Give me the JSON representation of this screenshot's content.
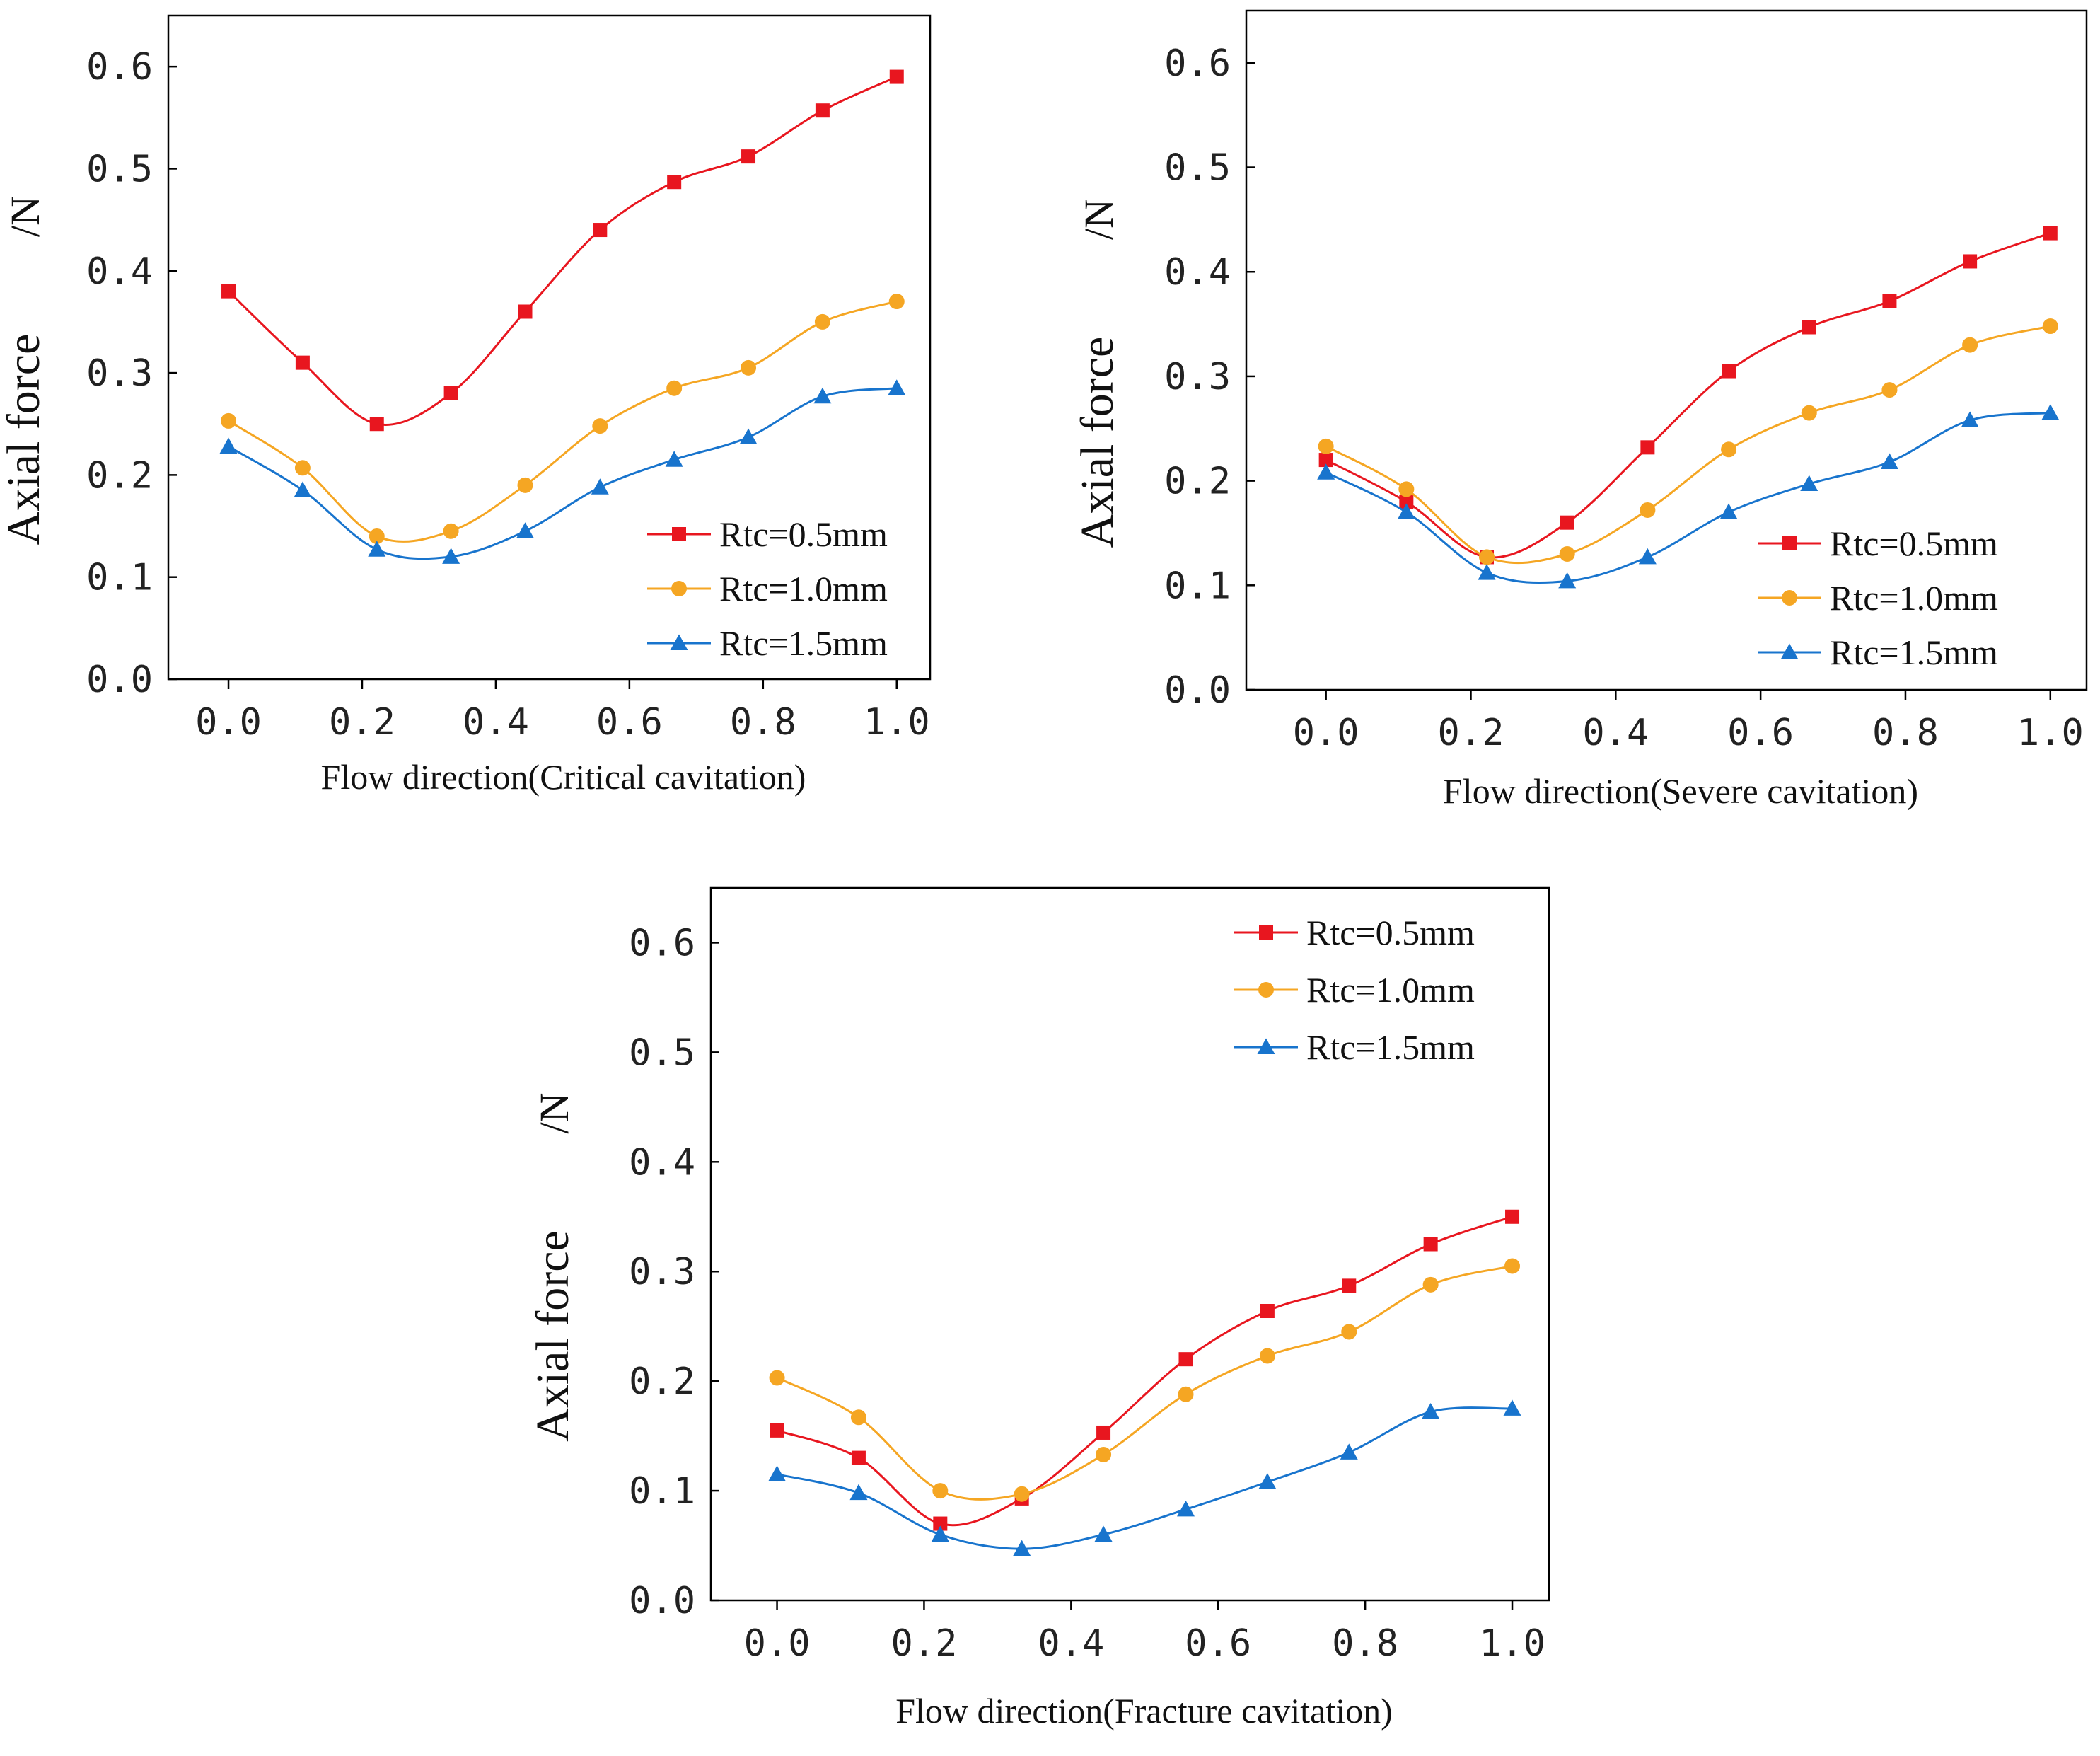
{
  "chart_data": [
    {
      "type": "line",
      "title": "",
      "xlabel": "Flow direction(Critical cavitation)",
      "ylabel_main": "Axial force",
      "ylabel_unit": "/N",
      "xlim": [
        -0.09,
        1.05
      ],
      "ylim": [
        0.0,
        0.65
      ],
      "x_ticks": [
        "0.0",
        "0.2",
        "0.4",
        "0.6",
        "0.8",
        "1.0"
      ],
      "y_ticks": [
        "0.0",
        "0.1",
        "0.2",
        "0.3",
        "0.4",
        "0.5",
        "0.6"
      ],
      "legend_position": "bottom-right",
      "x": [
        0.0,
        0.111,
        0.222,
        0.333,
        0.444,
        0.556,
        0.667,
        0.778,
        0.889,
        1.0
      ],
      "series": [
        {
          "name": "Rtc=0.5mm",
          "color": "#e8161f",
          "marker": "square",
          "values": [
            0.38,
            0.31,
            0.25,
            0.28,
            0.36,
            0.44,
            0.487,
            0.512,
            0.557,
            0.59
          ]
        },
        {
          "name": "Rtc=1.0mm",
          "color": "#f5a623",
          "marker": "circle",
          "values": [
            0.253,
            0.207,
            0.14,
            0.145,
            0.19,
            0.248,
            0.285,
            0.305,
            0.35,
            0.37
          ]
        },
        {
          "name": "Rtc=1.5mm",
          "color": "#1874cd",
          "marker": "triangle",
          "values": [
            0.228,
            0.185,
            0.127,
            0.12,
            0.145,
            0.188,
            0.215,
            0.237,
            0.277,
            0.285
          ]
        }
      ]
    },
    {
      "type": "line",
      "title": "",
      "xlabel": "Flow direction(Severe cavitation)",
      "ylabel_main": "Axial force",
      "ylabel_unit": "/N",
      "xlim": [
        -0.11,
        1.05
      ],
      "ylim": [
        0.0,
        0.65
      ],
      "x_ticks": [
        "0.0",
        "0.2",
        "0.4",
        "0.6",
        "0.8",
        "1.0"
      ],
      "y_ticks": [
        "0.0",
        "0.1",
        "0.2",
        "0.3",
        "0.4",
        "0.5",
        "0.6"
      ],
      "legend_position": "bottom-right",
      "x": [
        0.0,
        0.111,
        0.222,
        0.333,
        0.444,
        0.556,
        0.667,
        0.778,
        0.889,
        1.0
      ],
      "series": [
        {
          "name": "Rtc=0.5mm",
          "color": "#e8161f",
          "marker": "square",
          "values": [
            0.22,
            0.18,
            0.127,
            0.16,
            0.232,
            0.305,
            0.347,
            0.372,
            0.41,
            0.437
          ]
        },
        {
          "name": "Rtc=1.0mm",
          "color": "#f5a623",
          "marker": "circle",
          "values": [
            0.233,
            0.192,
            0.127,
            0.13,
            0.172,
            0.23,
            0.265,
            0.287,
            0.33,
            0.348
          ]
        },
        {
          "name": "Rtc=1.5mm",
          "color": "#1874cd",
          "marker": "triangle",
          "values": [
            0.208,
            0.17,
            0.112,
            0.104,
            0.127,
            0.17,
            0.197,
            0.218,
            0.258,
            0.265
          ]
        }
      ]
    },
    {
      "type": "line",
      "title": "",
      "xlabel": "Flow direction(Fracture cavitation)",
      "ylabel_main": "Axial force",
      "ylabel_unit": "/N",
      "xlim": [
        -0.09,
        1.05
      ],
      "ylim": [
        0.0,
        0.65
      ],
      "x_ticks": [
        "0.0",
        "0.2",
        "0.4",
        "0.6",
        "0.8",
        "1.0"
      ],
      "y_ticks": [
        "0.0",
        "0.1",
        "0.2",
        "0.3",
        "0.4",
        "0.5",
        "0.6"
      ],
      "legend_position": "top-right",
      "x": [
        0.0,
        0.111,
        0.222,
        0.333,
        0.444,
        0.556,
        0.667,
        0.778,
        0.889,
        1.0
      ],
      "series": [
        {
          "name": "Rtc=0.5mm",
          "color": "#e8161f",
          "marker": "square",
          "values": [
            0.155,
            0.13,
            0.07,
            0.093,
            0.153,
            0.22,
            0.264,
            0.287,
            0.325,
            0.35
          ]
        },
        {
          "name": "Rtc=1.0mm",
          "color": "#f5a623",
          "marker": "circle",
          "values": [
            0.203,
            0.167,
            0.1,
            0.097,
            0.133,
            0.188,
            0.223,
            0.245,
            0.288,
            0.305
          ]
        },
        {
          "name": "Rtc=1.5mm",
          "color": "#1874cd",
          "marker": "triangle",
          "values": [
            0.115,
            0.098,
            0.06,
            0.047,
            0.06,
            0.083,
            0.108,
            0.135,
            0.172,
            0.175
          ]
        }
      ]
    }
  ]
}
